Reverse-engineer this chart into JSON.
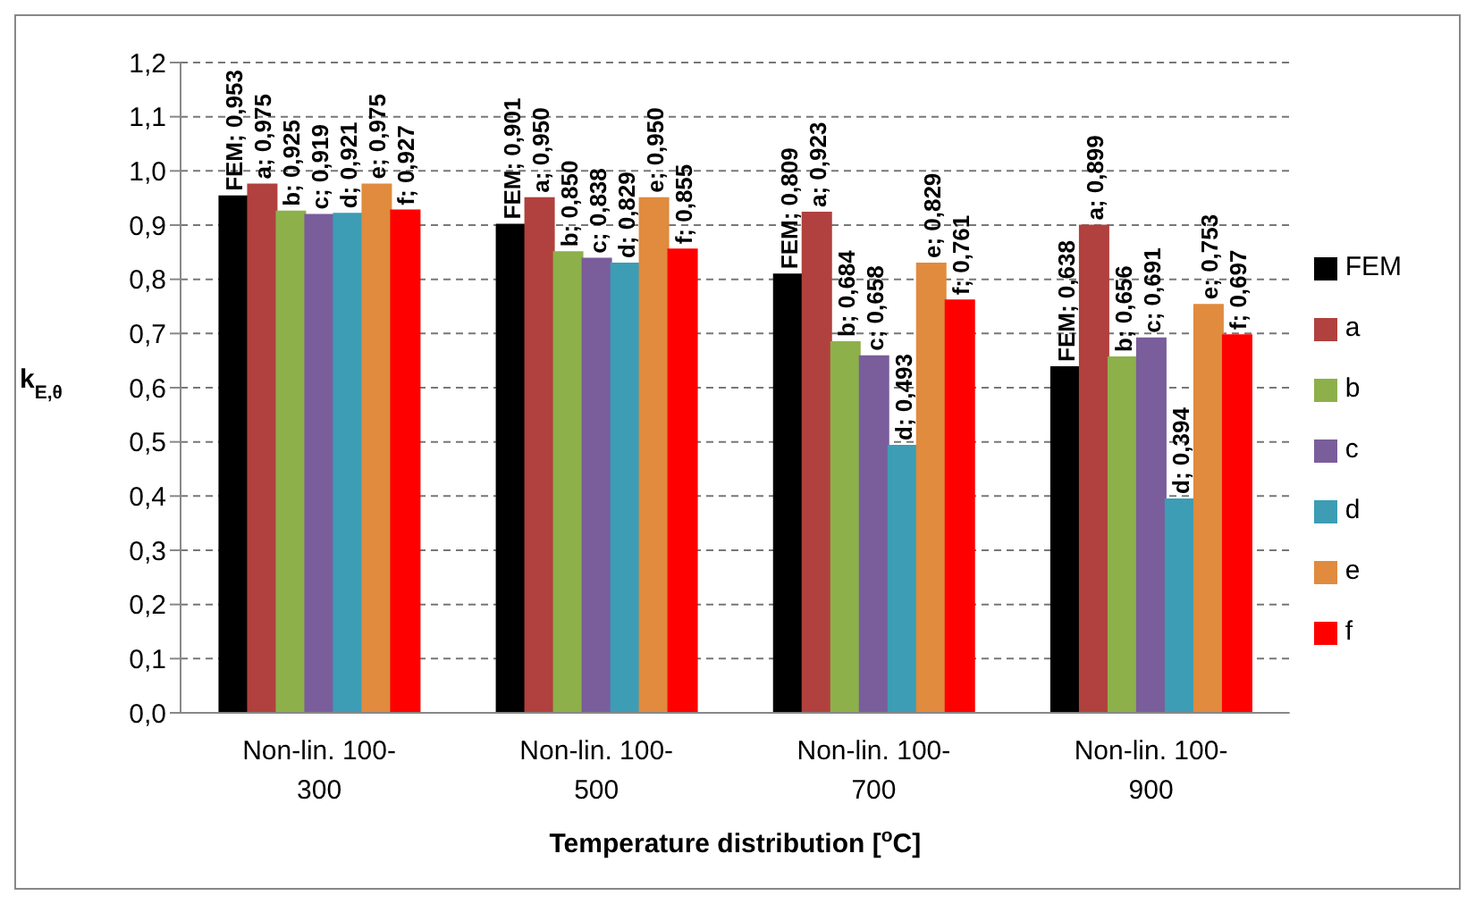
{
  "chart_data": {
    "type": "bar",
    "xlabel": "Temperature distribution [$^{o}$C]",
    "ylabel": "k$_{E,θ}$",
    "categories": [
      "Non-lin. 100-300",
      "Non-lin. 100-500",
      "Non-lin. 100-700",
      "Non-lin. 100-900"
    ],
    "series": [
      {
        "name": "FEM",
        "color": "#000000",
        "values": [
          0.953,
          0.901,
          0.809,
          0.638
        ],
        "value_labels": [
          "FEM; 0,953",
          "FEM; 0,901",
          "FEM; 0,809",
          "FEM; 0,638"
        ]
      },
      {
        "name": "a",
        "color": "#b0413e",
        "values": [
          0.975,
          0.95,
          0.923,
          0.899
        ],
        "value_labels": [
          "a; 0,975",
          "a; 0,950",
          "a; 0,923",
          "a; 0,899"
        ]
      },
      {
        "name": "b",
        "color": "#8db04a",
        "values": [
          0.925,
          0.85,
          0.684,
          0.656
        ],
        "value_labels": [
          "b; 0,925",
          "b; 0,850",
          "b; 0,684",
          "b; 0,656"
        ]
      },
      {
        "name": "c",
        "color": "#7a5d9b",
        "values": [
          0.919,
          0.838,
          0.658,
          0.691
        ],
        "value_labels": [
          "c; 0,919",
          "c; 0,838",
          "c; 0,658",
          "c; 0,691"
        ]
      },
      {
        "name": "d",
        "color": "#3c9db5",
        "values": [
          0.921,
          0.829,
          0.493,
          0.394
        ],
        "value_labels": [
          "d; 0,921",
          "d; 0,829",
          "d; 0,493",
          "d; 0,394"
        ]
      },
      {
        "name": "e",
        "color": "#e08b3e",
        "values": [
          0.975,
          0.95,
          0.829,
          0.753
        ],
        "value_labels": [
          "e; 0,975",
          "e; 0,950",
          "e; 0,829",
          "e; 0,753"
        ]
      },
      {
        "name": "f",
        "color": "#ff0000",
        "values": [
          0.927,
          0.855,
          0.761,
          0.697
        ],
        "value_labels": [
          "f; 0,927",
          "f; 0,855",
          "f; 0,761",
          "f; 0,697"
        ]
      }
    ],
    "ylim": [
      0,
      1.2
    ],
    "yticks": [
      {
        "value": 0,
        "label": "0,0"
      },
      {
        "value": 0.1,
        "label": "0,1"
      },
      {
        "value": 0.2,
        "label": "0,2"
      },
      {
        "value": 0.3,
        "label": "0,3"
      },
      {
        "value": 0.4,
        "label": "0,4"
      },
      {
        "value": 0.5,
        "label": "0,5"
      },
      {
        "value": 0.6,
        "label": "0,6"
      },
      {
        "value": 0.7,
        "label": "0,7"
      },
      {
        "value": 0.8,
        "label": "0,8"
      },
      {
        "value": 0.9,
        "label": "0,9"
      },
      {
        "value": 1,
        "label": "1,0"
      },
      {
        "value": 1.1,
        "label": "1,1"
      },
      {
        "value": 1.2,
        "label": "1,2"
      }
    ],
    "grid": "y",
    "legend": "right"
  }
}
